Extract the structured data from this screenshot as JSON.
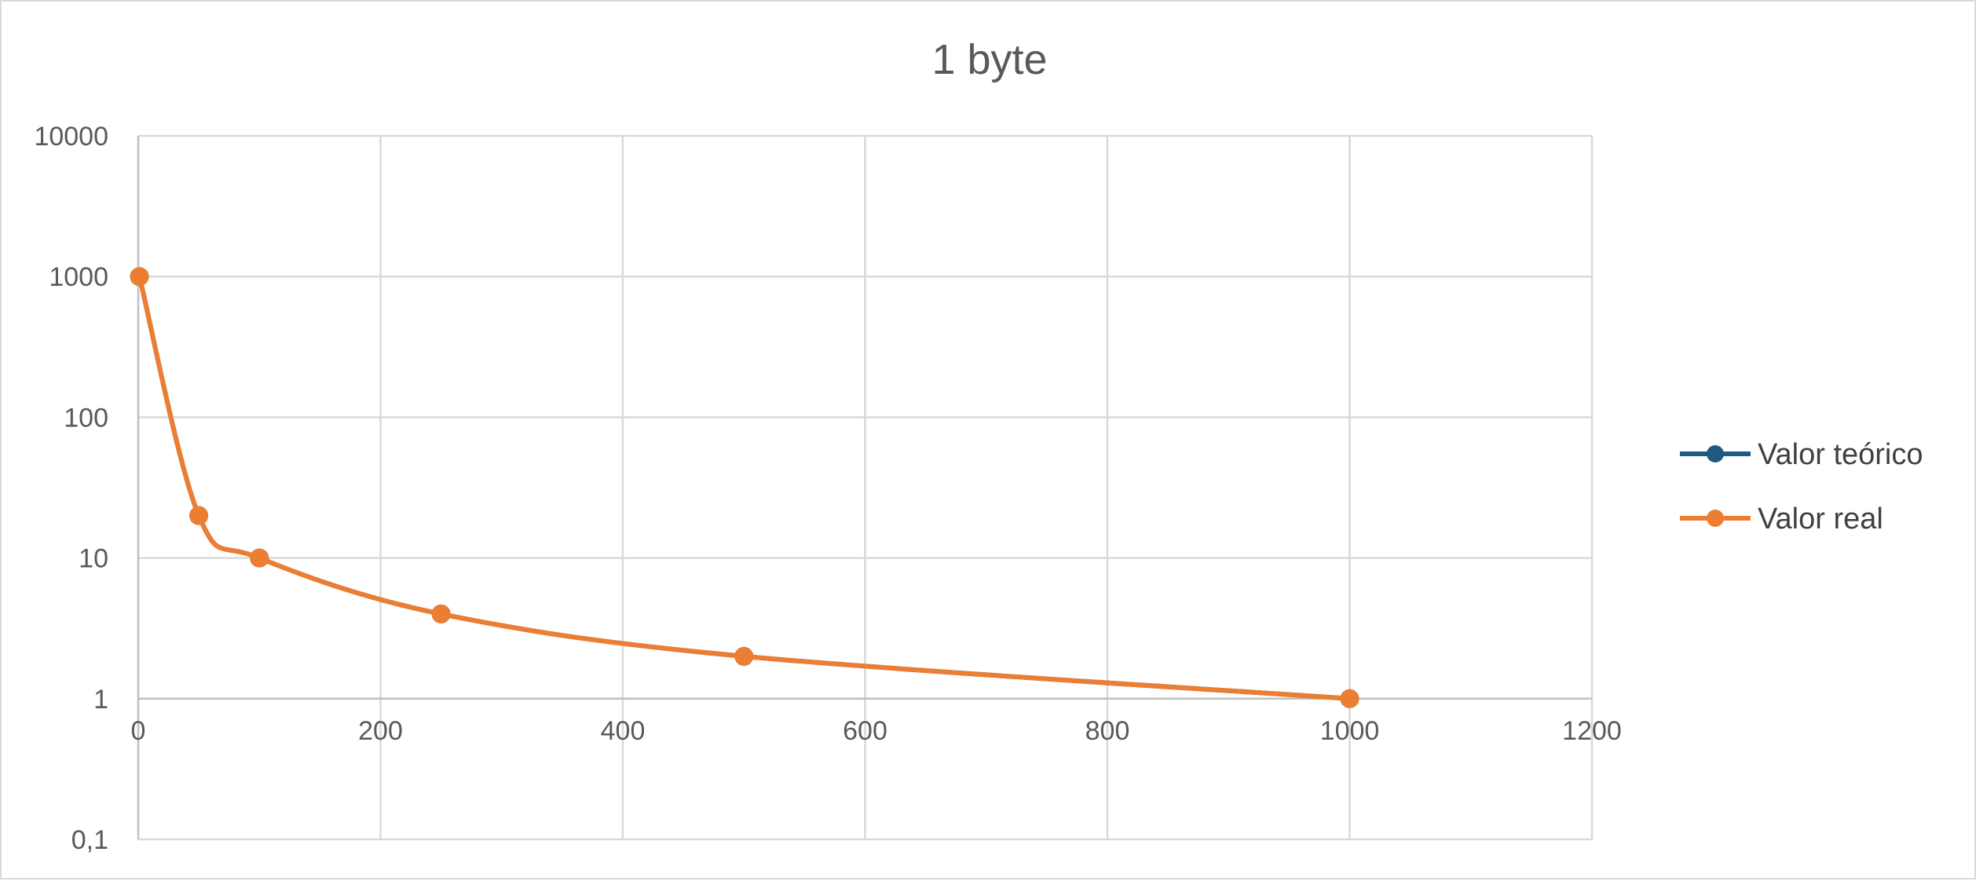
{
  "chart_data": {
    "type": "line",
    "title": "1 byte",
    "xlabel": "",
    "ylabel": "",
    "xlim": [
      0,
      1200
    ],
    "ylim": [
      0.1,
      10000
    ],
    "y_scale": "log",
    "x_ticks": [
      0,
      200,
      400,
      600,
      800,
      1000,
      1200
    ],
    "y_ticks": [
      0.1,
      1,
      10,
      100,
      1000,
      10000
    ],
    "x_tick_labels": [
      "0",
      "200",
      "400",
      "600",
      "800",
      "1000",
      "1200"
    ],
    "y_tick_labels": [
      "0,1",
      "1",
      "10",
      "100",
      "1000",
      "10000"
    ],
    "x_axis_crosses_at_y": 1,
    "grid": true,
    "smooth": true,
    "legend_position": "right",
    "series": [
      {
        "name": "Valor teórico",
        "color": "#1f5a82",
        "x": [
          1,
          50,
          100,
          250,
          500,
          1000
        ],
        "y": [
          1000,
          20,
          10,
          4,
          2,
          1
        ]
      },
      {
        "name": "Valor real",
        "color": "#ed7d31",
        "x": [
          1,
          50,
          100,
          250,
          500,
          1000
        ],
        "y": [
          1000,
          20,
          10,
          4,
          2,
          1
        ]
      }
    ]
  }
}
